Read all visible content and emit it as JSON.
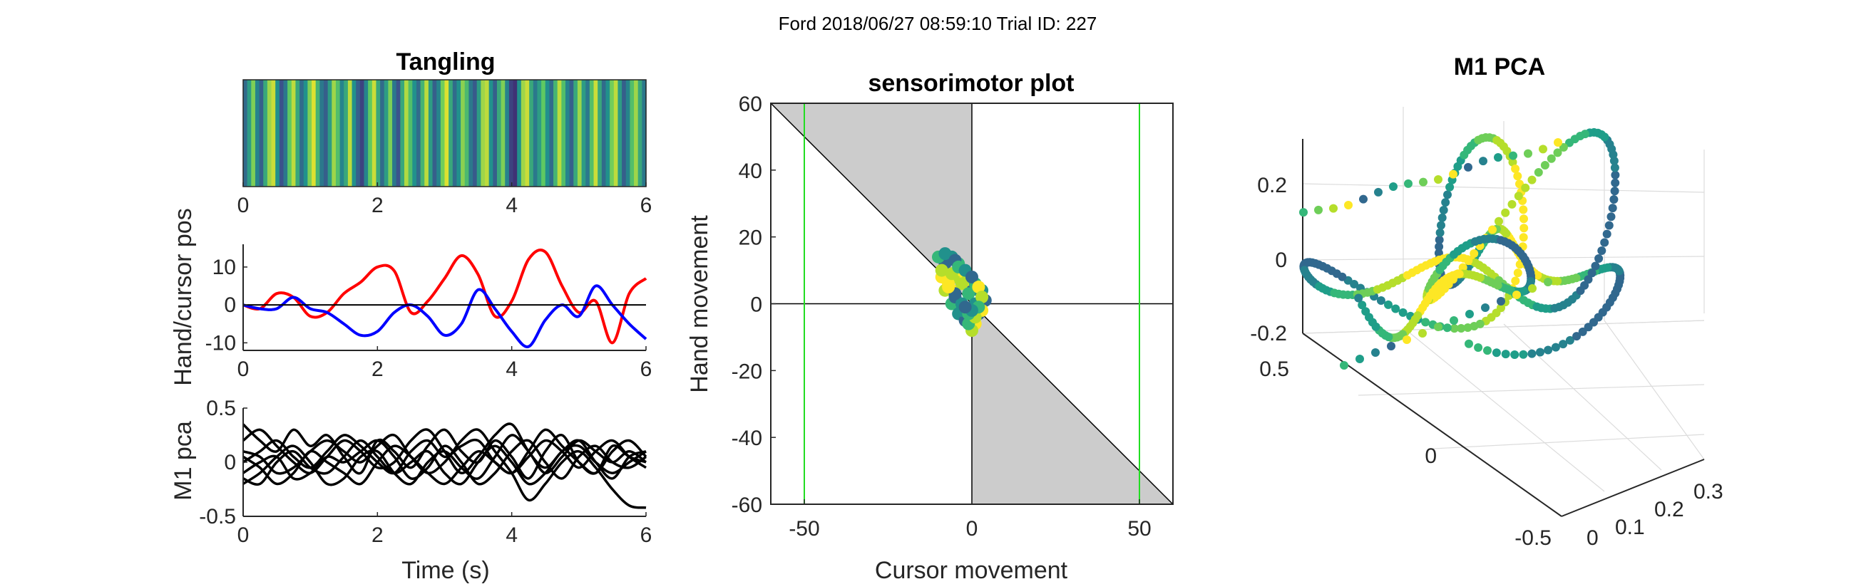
{
  "figure": {
    "suptitle": "Ford 2018/06/27 08:59:10 Trial ID: 227"
  },
  "chart_data": [
    {
      "id": "tangling",
      "type": "heatmap",
      "title": "Tangling",
      "xlabel": "",
      "ylabel": "",
      "xlim": [
        0,
        6
      ],
      "xticks": [
        "0",
        "2",
        "4",
        "6"
      ],
      "colormap": [
        "#440154",
        "#3b528b",
        "#21918c",
        "#5ec962",
        "#fde725"
      ],
      "values": [
        0.35,
        0.55,
        0.8,
        0.45,
        0.3,
        0.6,
        0.85,
        0.92,
        0.5,
        0.25,
        0.4,
        0.75,
        0.9,
        0.6,
        0.35,
        0.5,
        0.8,
        0.95,
        0.65,
        0.4,
        0.3,
        0.55,
        0.85,
        0.7,
        0.45,
        0.6,
        0.9,
        0.5,
        0.3,
        0.2,
        0.45,
        0.75,
        0.92,
        0.6,
        0.35,
        0.55,
        0.8,
        0.4,
        0.25,
        0.6,
        0.88,
        0.7,
        0.5,
        0.35,
        0.65,
        0.9,
        0.55,
        0.3,
        0.45,
        0.78,
        0.95,
        0.6,
        0.35,
        0.5,
        0.82,
        0.68,
        0.4,
        0.28,
        0.55,
        0.85,
        0.9,
        0.5,
        0.3,
        0.6,
        0.8,
        0.45,
        0.2,
        0.15,
        0.5,
        0.85,
        0.92,
        0.6,
        0.4,
        0.55,
        0.75,
        0.5,
        0.35,
        0.65,
        0.9,
        0.7,
        0.45,
        0.3,
        0.6,
        0.85,
        0.55,
        0.4,
        0.7,
        0.92,
        0.6,
        0.35,
        0.5,
        0.78,
        0.9,
        0.55,
        0.3,
        0.45,
        0.7,
        0.85,
        0.6,
        0.4
      ]
    },
    {
      "id": "hand_cursor",
      "type": "line",
      "title": "",
      "xlabel": "",
      "ylabel": "Hand/cursor pos",
      "xlim": [
        0,
        6
      ],
      "ylim": [
        -12,
        16
      ],
      "xticks": [
        "0",
        "2",
        "4",
        "6"
      ],
      "yticks": [
        "-10",
        "0",
        "10"
      ],
      "x": [
        0,
        0.25,
        0.5,
        0.75,
        1,
        1.25,
        1.5,
        1.75,
        2,
        2.25,
        2.5,
        2.75,
        3,
        3.25,
        3.5,
        3.75,
        4,
        4.25,
        4.5,
        4.75,
        5,
        5.25,
        5.5,
        5.75,
        6
      ],
      "series": [
        {
          "color": "#ff0000",
          "values": [
            0,
            -1,
            3,
            2,
            -3,
            -2,
            3,
            6,
            10,
            9,
            -2,
            1,
            7,
            13,
            8,
            -3,
            1,
            12,
            14,
            5,
            -2,
            1,
            -10,
            3,
            7
          ]
        },
        {
          "color": "#0000ff",
          "values": [
            0,
            -1,
            -1,
            2,
            -1,
            -2,
            -5,
            -8,
            -7,
            -2,
            0,
            -3,
            -8,
            -5,
            4,
            -1,
            -7,
            -11,
            -4,
            0,
            -3,
            5,
            0,
            -5,
            -9
          ]
        },
        {
          "color": "#000000",
          "values": [
            0,
            0,
            0,
            0,
            0,
            0,
            0,
            0,
            0,
            0,
            0,
            0,
            0,
            0,
            0,
            0,
            0,
            0,
            0,
            0,
            0,
            0,
            0,
            0,
            0
          ]
        }
      ]
    },
    {
      "id": "m1_pca_time",
      "type": "line",
      "title": "",
      "xlabel": "Time (s)",
      "ylabel": "M1 pca",
      "xlim": [
        0,
        6
      ],
      "ylim": [
        -0.5,
        0.5
      ],
      "xticks": [
        "0",
        "2",
        "4",
        "6"
      ],
      "yticks": [
        "0.5",
        "0",
        "-0.5"
      ],
      "x": [
        0,
        0.25,
        0.5,
        0.75,
        1,
        1.25,
        1.5,
        1.75,
        2,
        2.25,
        2.5,
        2.75,
        3,
        3.25,
        3.5,
        3.75,
        4,
        4.25,
        4.5,
        4.75,
        5,
        5.25,
        5.5,
        5.75,
        6
      ],
      "series": [
        {
          "color": "#000000",
          "values": [
            0.35,
            0.2,
            0.1,
            0.3,
            0.15,
            0.25,
            0.05,
            -0.1,
            0.2,
            0.1,
            -0.05,
            0.15,
            0.3,
            0.1,
            0.0,
            0.2,
            0.05,
            -0.15,
            0.1,
            0.25,
            0.0,
            -0.1,
            0.15,
            0.05,
            0.0
          ]
        },
        {
          "color": "#000000",
          "values": [
            0.2,
            0.3,
            0.15,
            0.0,
            -0.1,
            0.05,
            0.2,
            0.1,
            -0.05,
            0.0,
            0.2,
            0.3,
            0.1,
            -0.1,
            0.05,
            0.25,
            0.35,
            0.1,
            -0.05,
            0.1,
            0.2,
            0.0,
            -0.15,
            0.05,
            0.1
          ]
        },
        {
          "color": "#000000",
          "values": [
            0.1,
            0.05,
            -0.1,
            -0.05,
            0.1,
            0.2,
            0.1,
            0.0,
            0.15,
            0.25,
            0.05,
            -0.1,
            0.0,
            0.2,
            0.3,
            0.1,
            -0.1,
            -0.35,
            -0.2,
            0.0,
            0.1,
            -0.05,
            -0.25,
            -0.4,
            -0.42
          ]
        },
        {
          "color": "#000000",
          "values": [
            0.0,
            0.1,
            0.2,
            0.05,
            -0.05,
            0.1,
            0.25,
            0.15,
            0.0,
            -0.1,
            0.1,
            0.2,
            0.05,
            0.15,
            0.2,
            0.0,
            -0.1,
            0.05,
            0.2,
            0.1,
            -0.05,
            0.1,
            0.2,
            0.05,
            -0.05
          ]
        },
        {
          "color": "#000000",
          "values": [
            -0.1,
            0.0,
            0.05,
            -0.15,
            -0.1,
            0.05,
            0.0,
            0.1,
            0.2,
            0.05,
            -0.15,
            -0.05,
            0.15,
            0.0,
            -0.2,
            -0.1,
            0.1,
            0.2,
            0.0,
            -0.15,
            0.05,
            0.15,
            0.0,
            -0.05,
            0.05
          ]
        },
        {
          "color": "#000000",
          "values": [
            -0.2,
            -0.1,
            0.05,
            0.15,
            0.0,
            -0.2,
            -0.15,
            0.05,
            0.1,
            -0.1,
            -0.2,
            0.0,
            0.1,
            -0.05,
            -0.15,
            0.05,
            0.25,
            0.1,
            -0.1,
            0.05,
            0.2,
            0.1,
            0.0,
            0.1,
            0.0
          ]
        },
        {
          "color": "#000000",
          "values": [
            0.05,
            -0.05,
            -0.2,
            -0.1,
            0.1,
            0.0,
            -0.1,
            -0.2,
            0.0,
            0.15,
            0.05,
            -0.1,
            -0.2,
            -0.05,
            0.1,
            0.0,
            -0.1,
            0.1,
            0.3,
            0.15,
            0.0,
            -0.1,
            0.1,
            0.2,
            0.05
          ]
        },
        {
          "color": "#000000",
          "values": [
            -0.15,
            -0.2,
            0.0,
            0.1,
            -0.05,
            -0.1,
            0.05,
            0.2,
            0.05,
            -0.1,
            0.0,
            0.1,
            -0.1,
            -0.2,
            0.0,
            0.15,
            0.0,
            -0.2,
            -0.1,
            0.1,
            0.15,
            0.0,
            -0.1,
            0.0,
            0.1
          ]
        }
      ]
    },
    {
      "id": "sensorimotor",
      "type": "scatter",
      "title": "sensorimotor plot",
      "xlabel": "Cursor movement",
      "ylabel": "Hand movement",
      "xlim": [
        -60,
        60
      ],
      "ylim": [
        -60,
        60
      ],
      "xticks": [
        "-50",
        "0",
        "50"
      ],
      "yticks": [
        "60",
        "40",
        "20",
        "0",
        "-20",
        "-40",
        "-60"
      ],
      "shaded_regions": "x<0,y>-x and x>0,y<-x",
      "green_lines_x": [
        -50,
        50
      ],
      "point_colors": [
        "#fde725",
        "#b5de2b",
        "#35b779",
        "#21918c",
        "#31688e"
      ],
      "points": [
        [
          -6,
          4
        ],
        [
          -5,
          8
        ],
        [
          -4,
          12
        ],
        [
          -6,
          14
        ],
        [
          -8,
          12
        ],
        [
          -9,
          8
        ],
        [
          -8,
          4
        ],
        [
          -6,
          0
        ],
        [
          -4,
          -3
        ],
        [
          -2,
          -5
        ],
        [
          0,
          -4
        ],
        [
          2,
          -2
        ],
        [
          3,
          1
        ],
        [
          2,
          4
        ],
        [
          0,
          6
        ],
        [
          -2,
          7
        ],
        [
          -3,
          6
        ],
        [
          -1,
          3
        ],
        [
          1,
          0
        ],
        [
          2,
          -3
        ],
        [
          1,
          -6
        ],
        [
          0,
          -8
        ],
        [
          -1,
          -6
        ],
        [
          -3,
          -2
        ],
        [
          -5,
          2
        ],
        [
          -7,
          6
        ],
        [
          -9,
          10
        ],
        [
          -10,
          14
        ],
        [
          -8,
          15
        ],
        [
          -5,
          13
        ],
        [
          -3,
          10
        ],
        [
          -1,
          8
        ],
        [
          1,
          6
        ],
        [
          3,
          4
        ],
        [
          4,
          1
        ],
        [
          3,
          -2
        ],
        [
          1,
          -4
        ],
        [
          -1,
          -3
        ],
        [
          -3,
          0
        ],
        [
          -5,
          3
        ],
        [
          -7,
          5
        ],
        [
          -6,
          9
        ],
        [
          -4,
          11
        ],
        [
          -2,
          10
        ],
        [
          0,
          8
        ],
        [
          2,
          5
        ],
        [
          3,
          2
        ],
        [
          2,
          -1
        ],
        [
          0,
          -2
        ],
        [
          -2,
          -1
        ]
      ]
    },
    {
      "id": "m1_pca_3d",
      "type": "scatter",
      "title": "M1 PCA",
      "xlabel": "",
      "ylabel": "",
      "zlabel": "",
      "xticks": [
        "0",
        "0.1",
        "0.2",
        "0.3"
      ],
      "yticks": [
        "0.5",
        "0",
        "-0.5"
      ],
      "zticks": [
        "0.2",
        "0",
        "-0.2"
      ],
      "point_colors": [
        "#fde725",
        "#b5de2b",
        "#6ece58",
        "#35b779",
        "#1f9e89",
        "#26828e",
        "#31688e"
      ]
    }
  ]
}
